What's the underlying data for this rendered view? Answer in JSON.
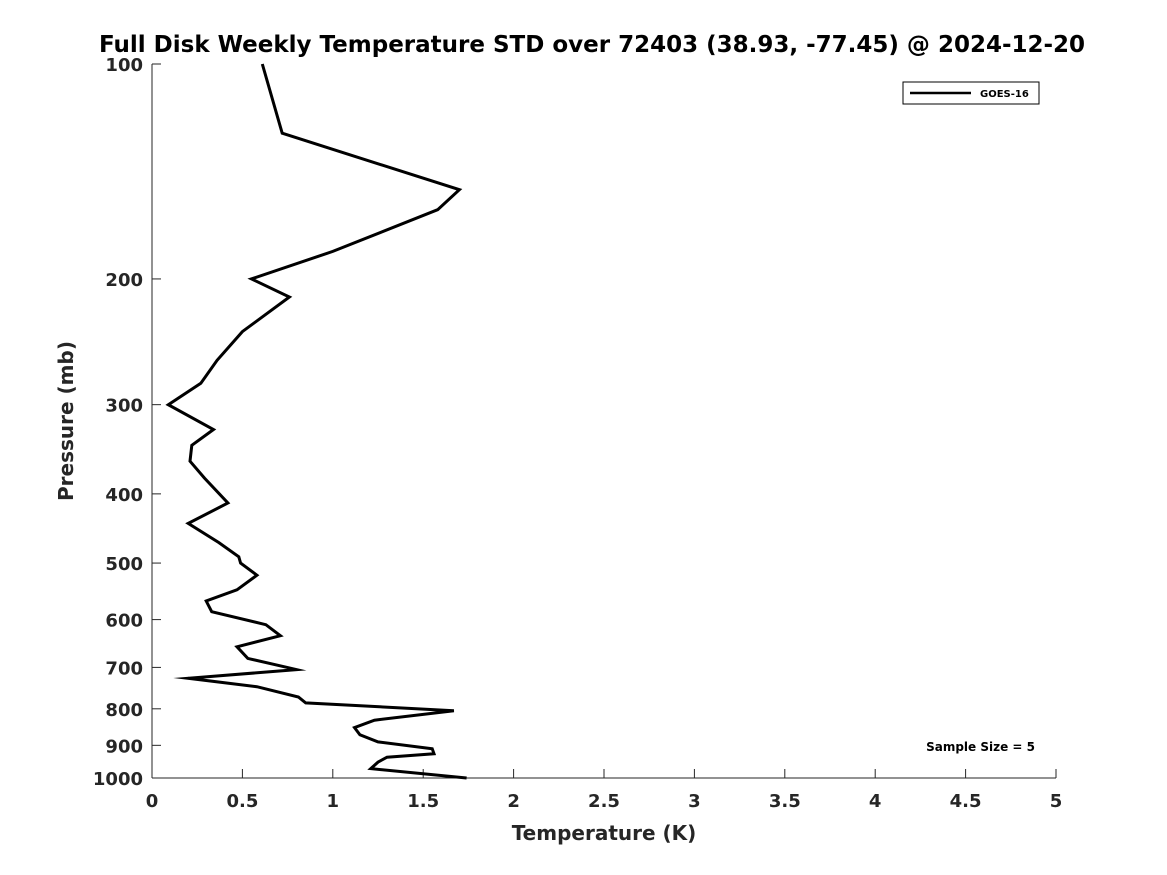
{
  "chart_data": {
    "type": "line",
    "title": "Full Disk Weekly Temperature STD over 72403 (38.93, -77.45) @ 2024-12-20",
    "xlabel": "Temperature (K)",
    "ylabel": "Pressure (mb)",
    "xlim": [
      0,
      5
    ],
    "ylim": [
      100,
      1000
    ],
    "y_scale": "log",
    "y_reversed": true,
    "x_ticks": [
      "0",
      "0.5",
      "1",
      "1.5",
      "2",
      "2.5",
      "3",
      "3.5",
      "4",
      "4.5",
      "5"
    ],
    "y_ticks": [
      "100",
      "200",
      "300",
      "400",
      "500",
      "600",
      "700",
      "800",
      "900",
      "1000"
    ],
    "grid": false,
    "legend_position": "top-right",
    "series": [
      {
        "name": "GOES-16",
        "color": "#000000",
        "x": [
          0.61,
          0.72,
          1.7,
          1.58,
          1.0,
          0.55,
          0.76,
          0.5,
          0.36,
          0.27,
          0.09,
          0.34,
          0.22,
          0.21,
          0.29,
          0.42,
          0.2,
          0.37,
          0.48,
          0.49,
          0.58,
          0.47,
          0.3,
          0.33,
          0.63,
          0.71,
          0.47,
          0.53,
          0.8,
          0.2,
          0.58,
          0.81,
          0.85,
          1.67,
          1.23,
          1.12,
          1.15,
          1.25,
          1.55,
          1.56,
          1.3,
          1.25,
          1.21,
          1.74
        ],
        "y": [
          100,
          125,
          150,
          160,
          183,
          200,
          212,
          237,
          260,
          280,
          300,
          325,
          342,
          360,
          380,
          412,
          440,
          468,
          490,
          500,
          520,
          545,
          565,
          585,
          610,
          632,
          655,
          680,
          705,
          725,
          745,
          770,
          785,
          805,
          830,
          850,
          870,
          890,
          910,
          925,
          935,
          950,
          970,
          1000
        ]
      }
    ],
    "annotations": [
      "Sample Size = 5"
    ]
  }
}
